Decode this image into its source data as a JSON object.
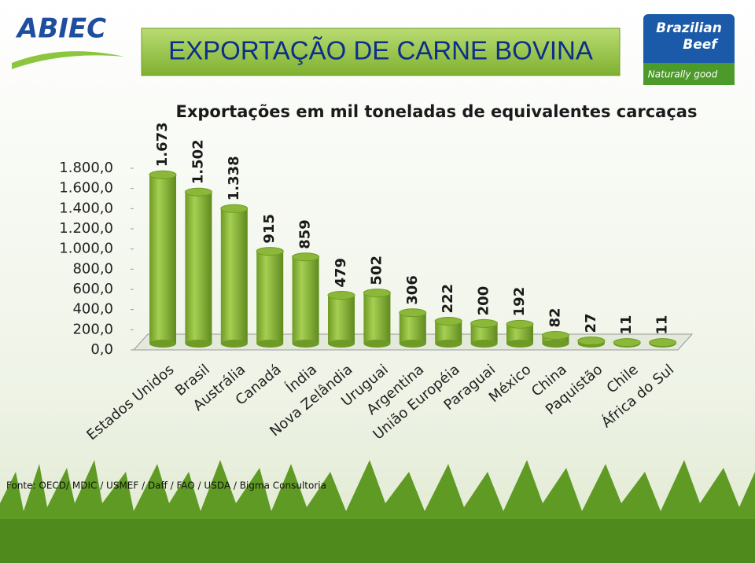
{
  "header": {
    "logo_left": "ABIEC",
    "title": "EXPORTAÇÃO DE CARNE BOVINA",
    "logo_right_line1": "Brazilian",
    "logo_right_line2": "Beef",
    "logo_right_tagline": "Naturally good"
  },
  "chart_data": {
    "type": "bar",
    "title": "Exportações em mil toneladas de equivalentes carcaças",
    "categories": [
      "Estados Unidos",
      "Brasil",
      "Austrália",
      "Canadá",
      "Índia",
      "Nova Zelândia",
      "Uruguai",
      "Argentina",
      "União Européia",
      "Paraguai",
      "México",
      "China",
      "Paquistão",
      "Chile",
      "África do Sul"
    ],
    "values": [
      1673,
      1502,
      1338,
      915,
      859,
      479,
      502,
      306,
      222,
      200,
      192,
      82,
      27,
      11,
      11
    ],
    "value_labels": [
      "1.673",
      "1.502",
      "1.338",
      "915",
      "859",
      "479",
      "502",
      "306",
      "222",
      "200",
      "192",
      "82",
      "27",
      "11",
      "11"
    ],
    "color": "#8cb83a",
    "ylim": [
      0,
      1800
    ],
    "yticks": [
      {
        "value": 0,
        "label": "0,0"
      },
      {
        "value": 200,
        "label": "200,0"
      },
      {
        "value": 400,
        "label": "400,0"
      },
      {
        "value": 600,
        "label": "600,0"
      },
      {
        "value": 800,
        "label": "800,0"
      },
      {
        "value": 1000,
        "label": "1.000,0"
      },
      {
        "value": 1200,
        "label": "1.200,0"
      },
      {
        "value": 1400,
        "label": "1.400,0"
      },
      {
        "value": 1600,
        "label": "1.600,0"
      },
      {
        "value": 1800,
        "label": "1.800,0"
      }
    ],
    "grid": false
  },
  "footer": {
    "source": "Fonte: OECD/ MDIC / USMEF / Daff / FAO / USDA / Bigma Consultoria"
  }
}
